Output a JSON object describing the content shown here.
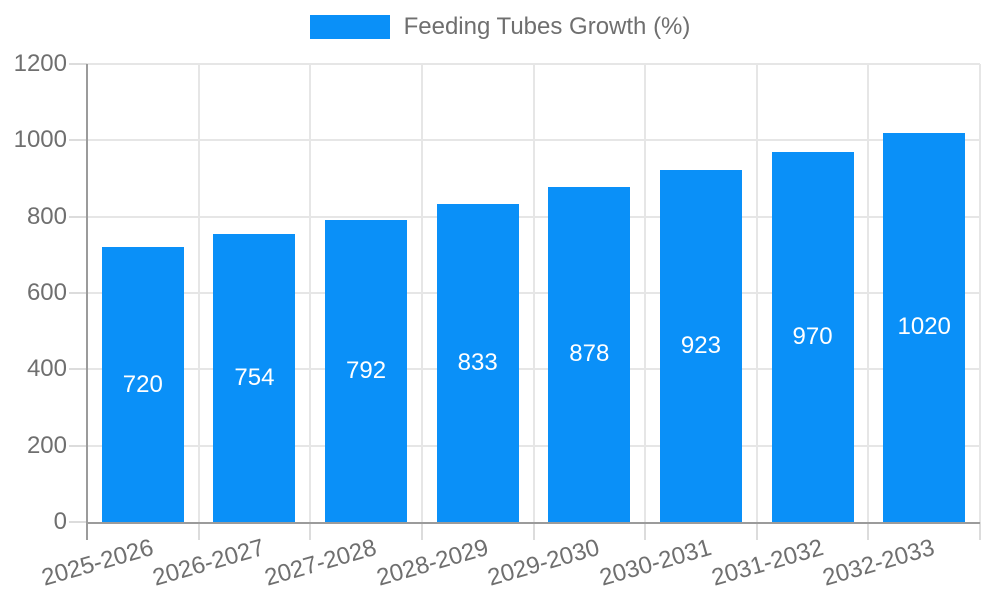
{
  "chart_data": {
    "type": "bar",
    "title": "",
    "legend_position": "top",
    "legend_label": "Feeding Tubes Growth (%)",
    "categories": [
      "2025-2026",
      "2026-2027",
      "2027-2028",
      "2028-2029",
      "2029-2030",
      "2030-2031",
      "2031-2032",
      "2032-2033"
    ],
    "series": [
      {
        "name": "Feeding Tubes Growth (%)",
        "values": [
          720,
          754,
          792,
          833,
          878,
          923,
          970,
          1020
        ]
      }
    ],
    "xlabel": "",
    "ylabel": "",
    "ylim": [
      0,
      1200
    ],
    "yticks": [
      0,
      200,
      400,
      600,
      800,
      1000,
      1200
    ],
    "grid": true,
    "colors": {
      "bar": "#0a90f8",
      "value_label": "#ffffff",
      "tick_label": "#6f6f6f",
      "gridline": "#e6e6e6",
      "axis_line": "#9b9b9b"
    }
  }
}
